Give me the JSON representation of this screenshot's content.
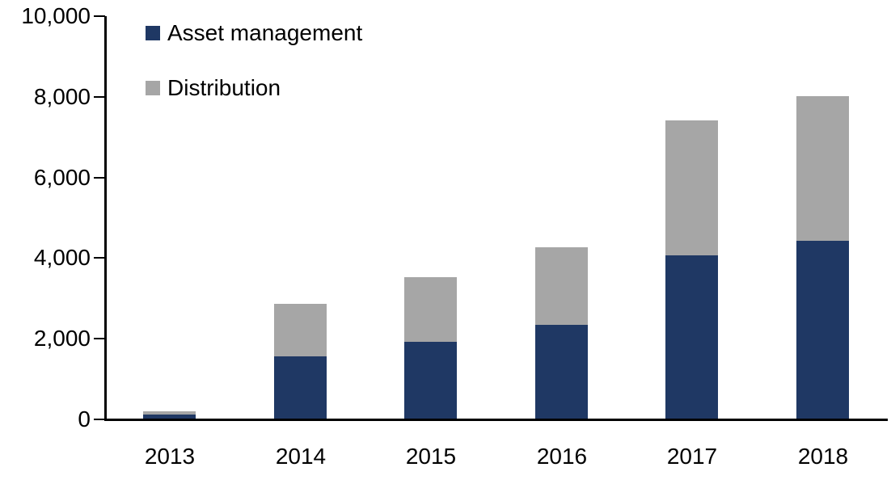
{
  "chart_data": {
    "type": "bar",
    "stacked": true,
    "title": "",
    "xlabel": "",
    "ylabel": "",
    "categories": [
      "2013",
      "2014",
      "2015",
      "2016",
      "2017",
      "2018"
    ],
    "series": [
      {
        "name": "Asset management",
        "color": "#1F3864",
        "values": [
          100,
          1550,
          1900,
          2320,
          4050,
          4400
        ]
      },
      {
        "name": "Distribution",
        "color": "#A6A6A6",
        "values": [
          90,
          1300,
          1600,
          1930,
          3350,
          3600
        ]
      }
    ],
    "totals": [
      190,
      2850,
      3500,
      4250,
      7400,
      8000
    ],
    "ylim": [
      0,
      10000
    ],
    "ytick_interval": 2000,
    "yticks": [
      0,
      2000,
      4000,
      6000,
      8000,
      10000
    ],
    "ytick_labels": [
      "0",
      "2,000",
      "4,000",
      "6,000",
      "8,000",
      "10,000"
    ],
    "grid": false,
    "legend_position": "top-left"
  },
  "colors": {
    "axis": "#000000",
    "text": "#000000",
    "background": "#FFFFFF"
  }
}
